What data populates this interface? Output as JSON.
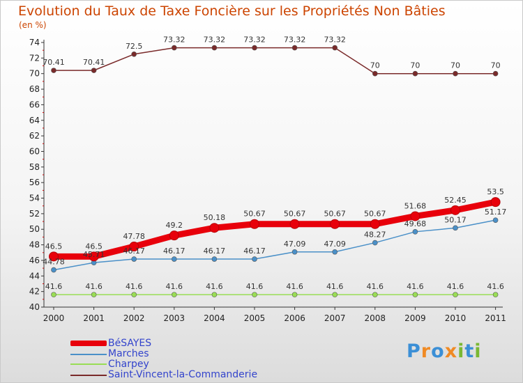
{
  "title": "Evolution du Taux de Taxe Foncière sur les Propriétés Non Bâties",
  "unit": "(en %)",
  "logo": {
    "letters": [
      "P",
      "r",
      "o",
      "x",
      "i",
      "t",
      "i"
    ],
    "colors": [
      "#3b8fd6",
      "#f08a24",
      "#3b8fd6",
      "#f08a24",
      "#7ab833",
      "#3b8fd6",
      "#7ab833"
    ]
  },
  "chart_data": {
    "type": "line",
    "x": [
      "2000",
      "2001",
      "2002",
      "2003",
      "2004",
      "2005",
      "2006",
      "2007",
      "2008",
      "2009",
      "2010",
      "2011"
    ],
    "ylim": [
      40,
      74
    ],
    "yticks": [
      "40",
      "42",
      "44",
      "46",
      "48",
      "50",
      "52",
      "54",
      "56",
      "58",
      "60",
      "62",
      "64",
      "66",
      "68",
      "70",
      "72",
      "74"
    ],
    "grid": false,
    "legend_position": "bottom-left",
    "series": [
      {
        "name": "BéSAYES",
        "color": "#e8000b",
        "width": "thick",
        "values": [
          46.5,
          46.5,
          47.78,
          49.2,
          50.18,
          50.67,
          50.67,
          50.67,
          50.67,
          51.68,
          52.45,
          53.5
        ],
        "labels": [
          "46.5",
          "46.5",
          "47.78",
          "49.2",
          "50.18",
          "50.67",
          "50.67",
          "50.67",
          "50.67",
          "51.68",
          "52.45",
          "53.5"
        ]
      },
      {
        "name": "Marches",
        "color": "#4a90c8",
        "width": "thin",
        "values": [
          44.78,
          45.71,
          46.17,
          46.17,
          46.17,
          46.17,
          47.09,
          47.09,
          48.27,
          49.68,
          50.17,
          51.17
        ],
        "labels": [
          "44.78",
          "45.71",
          "46.17",
          "46.17",
          "46.17",
          "46.17",
          "47.09",
          "47.09",
          "48.27",
          "49.68",
          "50.17",
          "51.17"
        ]
      },
      {
        "name": "Charpey",
        "color": "#99dd55",
        "width": "thin",
        "values": [
          41.6,
          41.6,
          41.6,
          41.6,
          41.6,
          41.6,
          41.6,
          41.6,
          41.6,
          41.6,
          41.6,
          41.6
        ],
        "labels": [
          "41.6",
          "41.6",
          "41.6",
          "41.6",
          "41.6",
          "41.6",
          "41.6",
          "41.6",
          "41.6",
          "41.6",
          "41.6",
          "41.6"
        ]
      },
      {
        "name": "Saint-Vincent-la-Commanderie",
        "color": "#7a2a2a",
        "width": "thin",
        "values": [
          70.41,
          70.41,
          72.5,
          73.32,
          73.32,
          73.32,
          73.32,
          73.32,
          70,
          70,
          70,
          70
        ],
        "labels": [
          "70.41",
          "70.41",
          "72.5",
          "73.32",
          "73.32",
          "73.32",
          "73.32",
          "73.32",
          "70",
          "70",
          "70",
          "70"
        ]
      }
    ]
  }
}
